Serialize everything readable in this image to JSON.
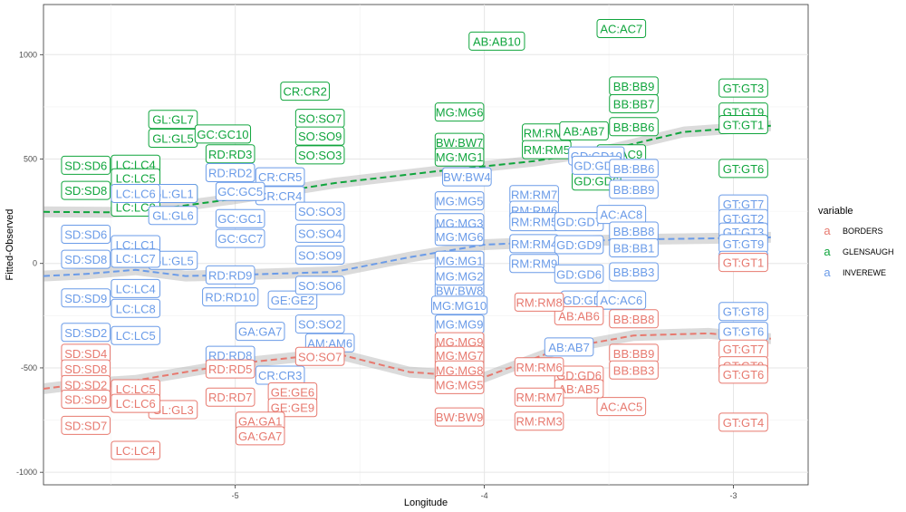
{
  "chart_data": {
    "type": "scatter",
    "xlabel": "Longitude",
    "ylabel": "Fitted-Observed",
    "xlim": [
      -5.77,
      -2.7
    ],
    "ylim": [
      -1060,
      1240
    ],
    "xticks": [
      -5,
      -4,
      -3
    ],
    "yticks": [
      -1000,
      -500,
      0,
      500,
      1000
    ],
    "grid": true,
    "legend": {
      "title": "variable",
      "position": "right",
      "key_glyph": "a",
      "entries": [
        {
          "name": "BORDERS",
          "color": "#E7796F"
        },
        {
          "name": "GLENSAUGH",
          "color": "#10A53D"
        },
        {
          "name": "INVEREWE",
          "color": "#6A9BE8"
        }
      ]
    },
    "series": [
      {
        "name": "GLENSAUGH",
        "color": "#10A53D",
        "points": [
          {
            "label": "AC:AC7",
            "x": -3.45,
            "y": 1125
          },
          {
            "label": "AB:AB10",
            "x": -3.95,
            "y": 1065
          },
          {
            "label": "CR:CR2",
            "x": -4.72,
            "y": 825
          },
          {
            "label": "BB:BB9",
            "x": -3.4,
            "y": 850
          },
          {
            "label": "BB:BB7",
            "x": -3.4,
            "y": 765
          },
          {
            "label": "BB:BB6",
            "x": -3.4,
            "y": 655
          },
          {
            "label": "GT:GT3",
            "x": -2.96,
            "y": 840
          },
          {
            "label": "GT:GT9",
            "x": -2.96,
            "y": 725
          },
          {
            "label": "GT:GT1",
            "x": -2.96,
            "y": 665
          },
          {
            "label": "GT:GT6",
            "x": -2.96,
            "y": 455
          },
          {
            "label": "MG:MG6",
            "x": -4.1,
            "y": 725
          },
          {
            "label": "SO:SO7",
            "x": -4.66,
            "y": 695
          },
          {
            "label": "SO:SO9",
            "x": -4.66,
            "y": 610
          },
          {
            "label": "SO:SO3",
            "x": -4.66,
            "y": 520
          },
          {
            "label": "GL:GL7",
            "x": -5.25,
            "y": 690
          },
          {
            "label": "GL:GL5",
            "x": -5.25,
            "y": 600
          },
          {
            "label": "GL:GL1",
            "x": -5.25,
            "y": 335
          },
          {
            "label": "GC:GC10",
            "x": -5.05,
            "y": 620
          },
          {
            "label": "RD:RD3",
            "x": -5.02,
            "y": 525
          },
          {
            "label": "LC:LC4",
            "x": -5.4,
            "y": 475
          },
          {
            "label": "LC:LC5",
            "x": -5.4,
            "y": 410
          },
          {
            "label": "LC:LC8",
            "x": -5.4,
            "y": 270
          },
          {
            "label": "SD:SD6",
            "x": -5.6,
            "y": 470
          },
          {
            "label": "SD:SD8",
            "x": -5.6,
            "y": 350
          },
          {
            "label": "BW:BW7",
            "x": -4.1,
            "y": 580
          },
          {
            "label": "MG:MG1",
            "x": -4.1,
            "y": 510
          },
          {
            "label": "RM:RM8",
            "x": -3.75,
            "y": 625
          },
          {
            "label": "RM:RM5",
            "x": -3.75,
            "y": 545
          },
          {
            "label": "AB:AB7",
            "x": -3.6,
            "y": 635
          },
          {
            "label": "GD:GD6",
            "x": -3.55,
            "y": 395
          },
          {
            "label": "AC:AC9",
            "x": -3.45,
            "y": 525
          }
        ],
        "trend": [
          [
            -5.77,
            247
          ],
          [
            -5.5,
            245
          ],
          [
            -5.3,
            262
          ],
          [
            -5.0,
            310
          ],
          [
            -4.6,
            385
          ],
          [
            -4.2,
            440
          ],
          [
            -3.8,
            490
          ],
          [
            -3.5,
            545
          ],
          [
            -3.2,
            630
          ],
          [
            -2.85,
            660
          ]
        ]
      },
      {
        "name": "INVEREWE",
        "color": "#6A9BE8",
        "points": [
          {
            "label": "CR:CR5",
            "x": -4.82,
            "y": 415
          },
          {
            "label": "CR:CR4",
            "x": -4.82,
            "y": 325
          },
          {
            "label": "CR:CR3",
            "x": -4.82,
            "y": -535
          },
          {
            "label": "RD:RD2",
            "x": -5.02,
            "y": 435
          },
          {
            "label": "RD:RD9",
            "x": -5.02,
            "y": -55
          },
          {
            "label": "RD:RD10",
            "x": -5.02,
            "y": -160
          },
          {
            "label": "RD:RD8",
            "x": -5.02,
            "y": -440
          },
          {
            "label": "GL:GL1",
            "x": -5.25,
            "y": 335
          },
          {
            "label": "GL:GL6",
            "x": -5.25,
            "y": 230
          },
          {
            "label": "GL:GL5",
            "x": -5.25,
            "y": 15
          },
          {
            "label": "GC:GC5",
            "x": -4.98,
            "y": 345
          },
          {
            "label": "GC:GC1",
            "x": -4.98,
            "y": 215
          },
          {
            "label": "GC:GC7",
            "x": -4.98,
            "y": 120
          },
          {
            "label": "GE:GE2",
            "x": -4.77,
            "y": -175
          },
          {
            "label": "GA:GA7",
            "x": -4.9,
            "y": -325
          },
          {
            "label": "LC:LC6",
            "x": -5.4,
            "y": 335
          },
          {
            "label": "LC:LC1",
            "x": -5.4,
            "y": 90
          },
          {
            "label": "LC:LC7",
            "x": -5.4,
            "y": 25
          },
          {
            "label": "LC:LC4",
            "x": -5.4,
            "y": -120
          },
          {
            "label": "LC:LC8",
            "x": -5.4,
            "y": -215
          },
          {
            "label": "LC:LC5",
            "x": -5.4,
            "y": -345
          },
          {
            "label": "SD:SD6",
            "x": -5.6,
            "y": 140
          },
          {
            "label": "SD:SD8",
            "x": -5.6,
            "y": 20
          },
          {
            "label": "SD:SD9",
            "x": -5.6,
            "y": -165
          },
          {
            "label": "SD:SD2",
            "x": -5.6,
            "y": -330
          },
          {
            "label": "SO:SO3",
            "x": -4.66,
            "y": 250
          },
          {
            "label": "SO:SO4",
            "x": -4.66,
            "y": 145
          },
          {
            "label": "SO:SO9",
            "x": -4.66,
            "y": 40
          },
          {
            "label": "SO:SO6",
            "x": -4.66,
            "y": -105
          },
          {
            "label": "SO:SO2",
            "x": -4.66,
            "y": -290
          },
          {
            "label": "BW:BW4",
            "x": -4.07,
            "y": 415
          },
          {
            "label": "BW:BW8",
            "x": -4.1,
            "y": -130
          },
          {
            "label": "MG:MG5",
            "x": -4.1,
            "y": 300
          },
          {
            "label": "MG:MG3",
            "x": -4.1,
            "y": 195
          },
          {
            "label": "MG:MG6",
            "x": -4.1,
            "y": 130
          },
          {
            "label": "MG:MG1",
            "x": -4.1,
            "y": 15
          },
          {
            "label": "MG:MG2",
            "x": -4.1,
            "y": -60
          },
          {
            "label": "MG:MG10",
            "x": -4.1,
            "y": -200
          },
          {
            "label": "MG:MG9",
            "x": -4.1,
            "y": -290
          },
          {
            "label": "AM:AM6",
            "x": -4.62,
            "y": -380
          },
          {
            "label": "RM:RM7",
            "x": -3.8,
            "y": 330
          },
          {
            "label": "RM:RM6",
            "x": -3.8,
            "y": 255
          },
          {
            "label": "RM:RM5",
            "x": -3.8,
            "y": 200
          },
          {
            "label": "RM:RM4",
            "x": -3.8,
            "y": 95
          },
          {
            "label": "RM:RM9",
            "x": -3.8,
            "y": 0
          },
          {
            "label": "GD:GD10",
            "x": -3.55,
            "y": 515
          },
          {
            "label": "GD:GD9",
            "x": -3.55,
            "y": 470
          },
          {
            "label": "GD:GD7",
            "x": -3.62,
            "y": 200
          },
          {
            "label": "GD:GD9",
            "x": -3.62,
            "y": 90
          },
          {
            "label": "GD:GD6",
            "x": -3.62,
            "y": -50
          },
          {
            "label": "GD:GD10",
            "x": -3.58,
            "y": -175
          },
          {
            "label": "AB:AB7",
            "x": -3.66,
            "y": -400
          },
          {
            "label": "AC:AC8",
            "x": -3.45,
            "y": 235
          },
          {
            "label": "AC:AC6",
            "x": -3.45,
            "y": -175
          },
          {
            "label": "BB:BB6",
            "x": -3.4,
            "y": 455
          },
          {
            "label": "BB:BB9",
            "x": -3.4,
            "y": 355
          },
          {
            "label": "BB:BB8",
            "x": -3.4,
            "y": 155
          },
          {
            "label": "BB:BB1",
            "x": -3.4,
            "y": 75
          },
          {
            "label": "BB:BB3",
            "x": -3.4,
            "y": -40
          },
          {
            "label": "GT:GT7",
            "x": -2.96,
            "y": 285
          },
          {
            "label": "GT:GT2",
            "x": -2.96,
            "y": 215
          },
          {
            "label": "GT:GT3",
            "x": -2.96,
            "y": 150
          },
          {
            "label": "GT:GT9",
            "x": -2.96,
            "y": 95
          },
          {
            "label": "GT:GT5",
            "x": -2.96,
            "y": 15
          },
          {
            "label": "GT:GT8",
            "x": -2.96,
            "y": -230
          },
          {
            "label": "GT:GT6",
            "x": -2.96,
            "y": -325
          }
        ],
        "trend": [
          [
            -5.77,
            -60
          ],
          [
            -5.6,
            -50
          ],
          [
            -5.4,
            -30
          ],
          [
            -5.2,
            -60
          ],
          [
            -5.0,
            -55
          ],
          [
            -4.6,
            -40
          ],
          [
            -4.3,
            30
          ],
          [
            -4.0,
            90
          ],
          [
            -3.7,
            105
          ],
          [
            -3.4,
            115
          ],
          [
            -3.1,
            120
          ],
          [
            -2.85,
            125
          ]
        ]
      },
      {
        "name": "BORDERS",
        "color": "#E7796F",
        "points": [
          {
            "label": "GT:GT1",
            "x": -2.96,
            "y": 5
          },
          {
            "label": "GT:GT7",
            "x": -2.96,
            "y": -410
          },
          {
            "label": "GT:GT9",
            "x": -2.96,
            "y": -490
          },
          {
            "label": "GT:GT6",
            "x": -2.96,
            "y": -530
          },
          {
            "label": "GT:GT4",
            "x": -2.96,
            "y": -760
          },
          {
            "label": "BB:BB8",
            "x": -3.4,
            "y": -265
          },
          {
            "label": "BB:BB9",
            "x": -3.4,
            "y": -430
          },
          {
            "label": "BB:BB3",
            "x": -3.4,
            "y": -510
          },
          {
            "label": "AC:AC5",
            "x": -3.45,
            "y": -685
          },
          {
            "label": "AB:AB6",
            "x": -3.62,
            "y": -250
          },
          {
            "label": "GD:GD6",
            "x": -3.62,
            "y": -535
          },
          {
            "label": "AB:AB5",
            "x": -3.62,
            "y": -600
          },
          {
            "label": "RM:RM8",
            "x": -3.78,
            "y": -185
          },
          {
            "label": "RM:RM6",
            "x": -3.78,
            "y": -495
          },
          {
            "label": "RM:RM7",
            "x": -3.78,
            "y": -640
          },
          {
            "label": "RM:RM3",
            "x": -3.78,
            "y": -755
          },
          {
            "label": "MG:MG9",
            "x": -4.1,
            "y": -375
          },
          {
            "label": "MG:MG7",
            "x": -4.1,
            "y": -440
          },
          {
            "label": "MG:MG8",
            "x": -4.1,
            "y": -510
          },
          {
            "label": "MG:MG5",
            "x": -4.1,
            "y": -580
          },
          {
            "label": "BW:BW9",
            "x": -4.1,
            "y": -735
          },
          {
            "label": "SO:SO7",
            "x": -4.66,
            "y": -445
          },
          {
            "label": "GE:GE6",
            "x": -4.77,
            "y": -615
          },
          {
            "label": "GE:GE9",
            "x": -4.77,
            "y": -690
          },
          {
            "label": "RD:RD5",
            "x": -5.02,
            "y": -505
          },
          {
            "label": "RD:RD7",
            "x": -5.02,
            "y": -640
          },
          {
            "label": "GA:GA1",
            "x": -4.9,
            "y": -755
          },
          {
            "label": "GA:GA7",
            "x": -4.9,
            "y": -825
          },
          {
            "label": "GL:GL3",
            "x": -5.25,
            "y": -700
          },
          {
            "label": "LC:LC5",
            "x": -5.4,
            "y": -600
          },
          {
            "label": "LC:LC6",
            "x": -5.4,
            "y": -670
          },
          {
            "label": "LC:LC4",
            "x": -5.4,
            "y": -895
          },
          {
            "label": "SD:SD4",
            "x": -5.6,
            "y": -430
          },
          {
            "label": "SD:SD8",
            "x": -5.6,
            "y": -505
          },
          {
            "label": "SD:SD2",
            "x": -5.6,
            "y": -580
          },
          {
            "label": "SD:SD9",
            "x": -5.6,
            "y": -650
          },
          {
            "label": "SD:SD7",
            "x": -5.6,
            "y": -775
          }
        ],
        "trend": [
          [
            -5.77,
            -600
          ],
          [
            -5.6,
            -575
          ],
          [
            -5.4,
            -560
          ],
          [
            -5.2,
            -520
          ],
          [
            -5.0,
            -480
          ],
          [
            -4.6,
            -430
          ],
          [
            -4.3,
            -520
          ],
          [
            -4.0,
            -545
          ],
          [
            -3.7,
            -410
          ],
          [
            -3.4,
            -345
          ],
          [
            -3.1,
            -335
          ],
          [
            -2.85,
            -360
          ]
        ]
      }
    ]
  }
}
